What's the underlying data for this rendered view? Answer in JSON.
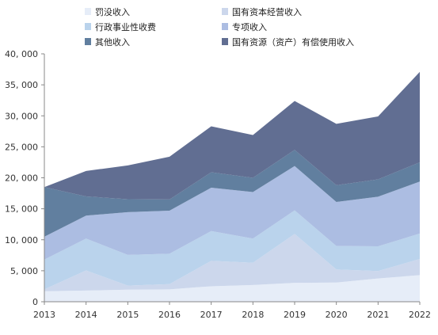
{
  "chart_data": {
    "type": "area",
    "stacked": true,
    "title": "",
    "xlabel": "",
    "ylabel": "",
    "x": [
      "2013",
      "2014",
      "2015",
      "2016",
      "2017",
      "2018",
      "2019",
      "2020",
      "2021",
      "2022"
    ],
    "ylim": [
      0,
      40000
    ],
    "yticks": [
      0,
      5000,
      10000,
      15000,
      20000,
      25000,
      30000,
      35000,
      40000
    ],
    "ytick_labels": [
      "0",
      "5, 000",
      "10, 000",
      "15, 000",
      "20, 000",
      "25, 000",
      "30, 000",
      "35, 000",
      "40, 000"
    ],
    "grid": false,
    "legend_position": "top",
    "series": [
      {
        "name": "罚没收入",
        "color": "#e6edf8",
        "values": [
          1700,
          1800,
          1950,
          2000,
          2500,
          2700,
          3050,
          3100,
          3750,
          4300
        ]
      },
      {
        "name": "国有资本经营收入",
        "color": "#ccd7ec",
        "values": [
          300,
          3250,
          650,
          850,
          4100,
          3600,
          7900,
          2100,
          1200,
          2600
        ]
      },
      {
        "name": "行政事业性收费",
        "color": "#bad3ec",
        "values": [
          4800,
          5150,
          4950,
          4900,
          4800,
          3900,
          3800,
          3800,
          4000,
          4100
        ]
      },
      {
        "name": "专项收入",
        "color": "#acbde2",
        "values": [
          3700,
          3700,
          6900,
          6950,
          7000,
          7500,
          7150,
          7100,
          8000,
          8400
        ]
      },
      {
        "name": "其他收入",
        "color": "#617f9f",
        "values": [
          8000,
          3100,
          2100,
          1800,
          2500,
          2300,
          2600,
          2700,
          2800,
          3100
        ]
      },
      {
        "name": "国有资源（资产）有偿使用收入",
        "color": "#616e92",
        "values": [
          0,
          4100,
          5450,
          6900,
          7400,
          6900,
          7900,
          9900,
          10150,
          14600
        ]
      }
    ]
  }
}
